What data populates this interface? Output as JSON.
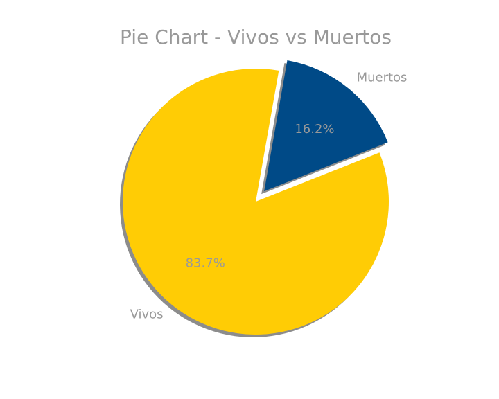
{
  "chart_data": {
    "type": "pie",
    "title": "Pie Chart - Vivos vs Muertos",
    "labels": [
      "Vivos",
      "Muertos"
    ],
    "values": [
      83.7,
      16.2
    ],
    "percent_labels": [
      "83.7%",
      "16.2%"
    ],
    "colors": [
      "#FFCC05",
      "#004A87"
    ],
    "explode": [
      0,
      0.1
    ],
    "shadow": true,
    "start_angle_deg": 80,
    "legend": "none"
  }
}
